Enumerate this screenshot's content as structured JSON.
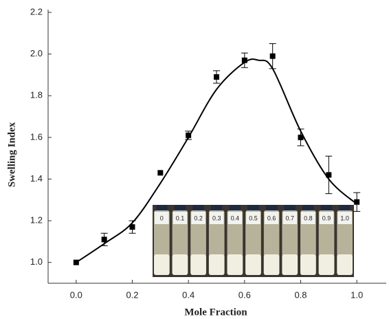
{
  "chart_data": {
    "type": "scatter",
    "x_label": "Mole Fraction",
    "y_label": "Swelling Index",
    "series": [
      {
        "color": "#000000",
        "x": [
          0.0,
          0.1,
          0.2,
          0.3,
          0.4,
          0.5,
          0.6,
          0.7,
          0.8,
          0.9,
          1.0
        ],
        "values": [
          1.0,
          1.11,
          1.17,
          1.43,
          1.61,
          1.89,
          1.97,
          1.99,
          1.6,
          1.42,
          1.29
        ],
        "errors": [
          0,
          0.03,
          0.03,
          0,
          0.02,
          0.03,
          0.035,
          0.06,
          0.04,
          0.09,
          0.045
        ]
      }
    ],
    "fit_curve": {
      "color": "#000000",
      "x": [
        0.0,
        0.1,
        0.2,
        0.3,
        0.4,
        0.5,
        0.6,
        0.65,
        0.7,
        0.8,
        0.9,
        1.0
      ],
      "values": [
        1.0,
        1.09,
        1.19,
        1.38,
        1.6,
        1.83,
        1.96,
        1.97,
        1.93,
        1.63,
        1.4,
        1.28
      ]
    },
    "xlim": [
      -0.1,
      1.1
    ],
    "xticks": [
      {
        "value": 0,
        "label": "0.0"
      },
      {
        "value": 0.2,
        "label": "0.2"
      },
      {
        "value": 0.4,
        "label": "0.4"
      },
      {
        "value": 0.6,
        "label": "0.6"
      },
      {
        "value": 0.8,
        "label": "0.8"
      },
      {
        "value": 1,
        "label": "1.0"
      }
    ],
    "ylim": [
      0.9,
      2.2
    ],
    "yticks": [
      {
        "value": 1,
        "label": "1.0"
      },
      {
        "value": 1.2,
        "label": "1.2"
      },
      {
        "value": 1.4,
        "label": "1.4"
      },
      {
        "value": 1.6,
        "label": "1.6"
      },
      {
        "value": 1.8,
        "label": "1.8"
      },
      {
        "value": 2,
        "label": "2.0"
      },
      {
        "value": 2.2,
        "label": "2.2"
      }
    ],
    "inset_labels": [
      "0",
      "0.1",
      "0.2",
      "0.3",
      "0.4",
      "0.5",
      "0.6",
      "0.7",
      "0.8",
      "0.9",
      "1.0"
    ]
  }
}
